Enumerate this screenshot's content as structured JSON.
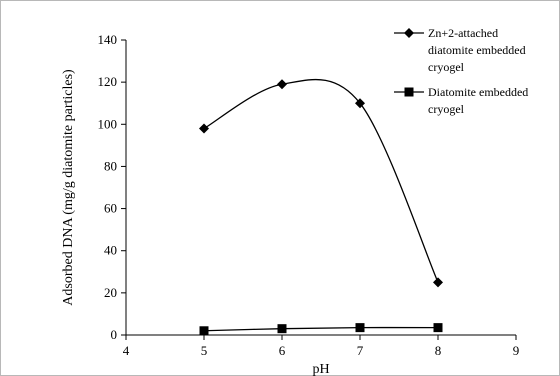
{
  "chart_data": {
    "type": "line",
    "xlabel": "pH",
    "ylabel": "Adsorbed DNA (mg/g diatomite particles)",
    "xlim": [
      4,
      9
    ],
    "ylim": [
      0,
      140
    ],
    "xticks": [
      4,
      5,
      6,
      7,
      8,
      9
    ],
    "yticks": [
      0,
      20,
      40,
      60,
      80,
      100,
      120,
      140
    ],
    "grid": false,
    "legend_position": "top-right",
    "series": [
      {
        "name": "Zn+2-attached diatomite embedded cryogel",
        "name_lines": [
          "Zn+2-attached",
          "diatomite embedded",
          "cryogel"
        ],
        "marker": "diamond",
        "smooth": true,
        "color": "#000000",
        "x": [
          5,
          6,
          7,
          8
        ],
        "y": [
          98,
          119,
          110,
          25
        ]
      },
      {
        "name": "Diatomite embedded cryogel",
        "name_lines": [
          "Diatomite embedded",
          "cryogel"
        ],
        "marker": "square",
        "smooth": true,
        "color": "#000000",
        "x": [
          5,
          6,
          7,
          8
        ],
        "y": [
          2,
          3,
          3.5,
          3.5
        ]
      }
    ]
  }
}
